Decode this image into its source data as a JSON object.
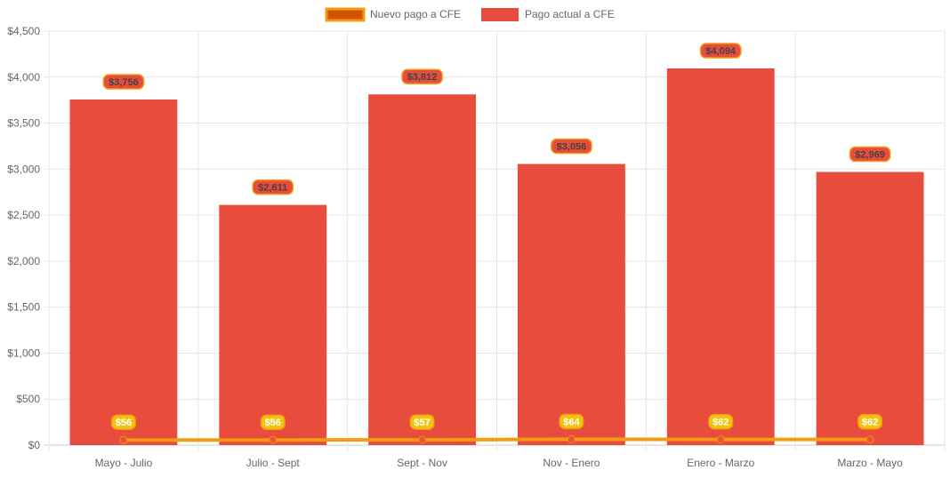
{
  "chart_data": {
    "type": "bar",
    "categories": [
      "Mayo - Julio",
      "Julio - Sept",
      "Sept - Nov",
      "Nov - Enero",
      "Enero - Marzo",
      "Marzo - Mayo"
    ],
    "series": [
      {
        "name": "Nuevo pago a CFE",
        "type": "line",
        "values": [
          56,
          56,
          57,
          64,
          62,
          62
        ],
        "labels": [
          "$56",
          "$56",
          "$57",
          "$64",
          "$62",
          "$62"
        ],
        "color": "#f39c12",
        "fill": "#d35400"
      },
      {
        "name": "Pago actual a CFE",
        "type": "bar",
        "values": [
          3756,
          2611,
          3812,
          3056,
          4094,
          2969
        ],
        "labels": [
          "$3,756",
          "$2,611",
          "$3,812",
          "$3,056",
          "$4,094",
          "$2,969"
        ],
        "color": "#e74c3c"
      }
    ],
    "y_ticks": [
      "$0",
      "$500",
      "$1,000",
      "$1,500",
      "$2,000",
      "$2,500",
      "$3,000",
      "$3,500",
      "$4,000",
      "$4,500"
    ],
    "ylim": [
      0,
      4500
    ],
    "legend_position": "top-center",
    "grid": true
  },
  "colors": {
    "grid": "#e5e5e5",
    "axis_text": "#666666",
    "label_text": "#444444",
    "badge_fill": "#f1c40f"
  }
}
